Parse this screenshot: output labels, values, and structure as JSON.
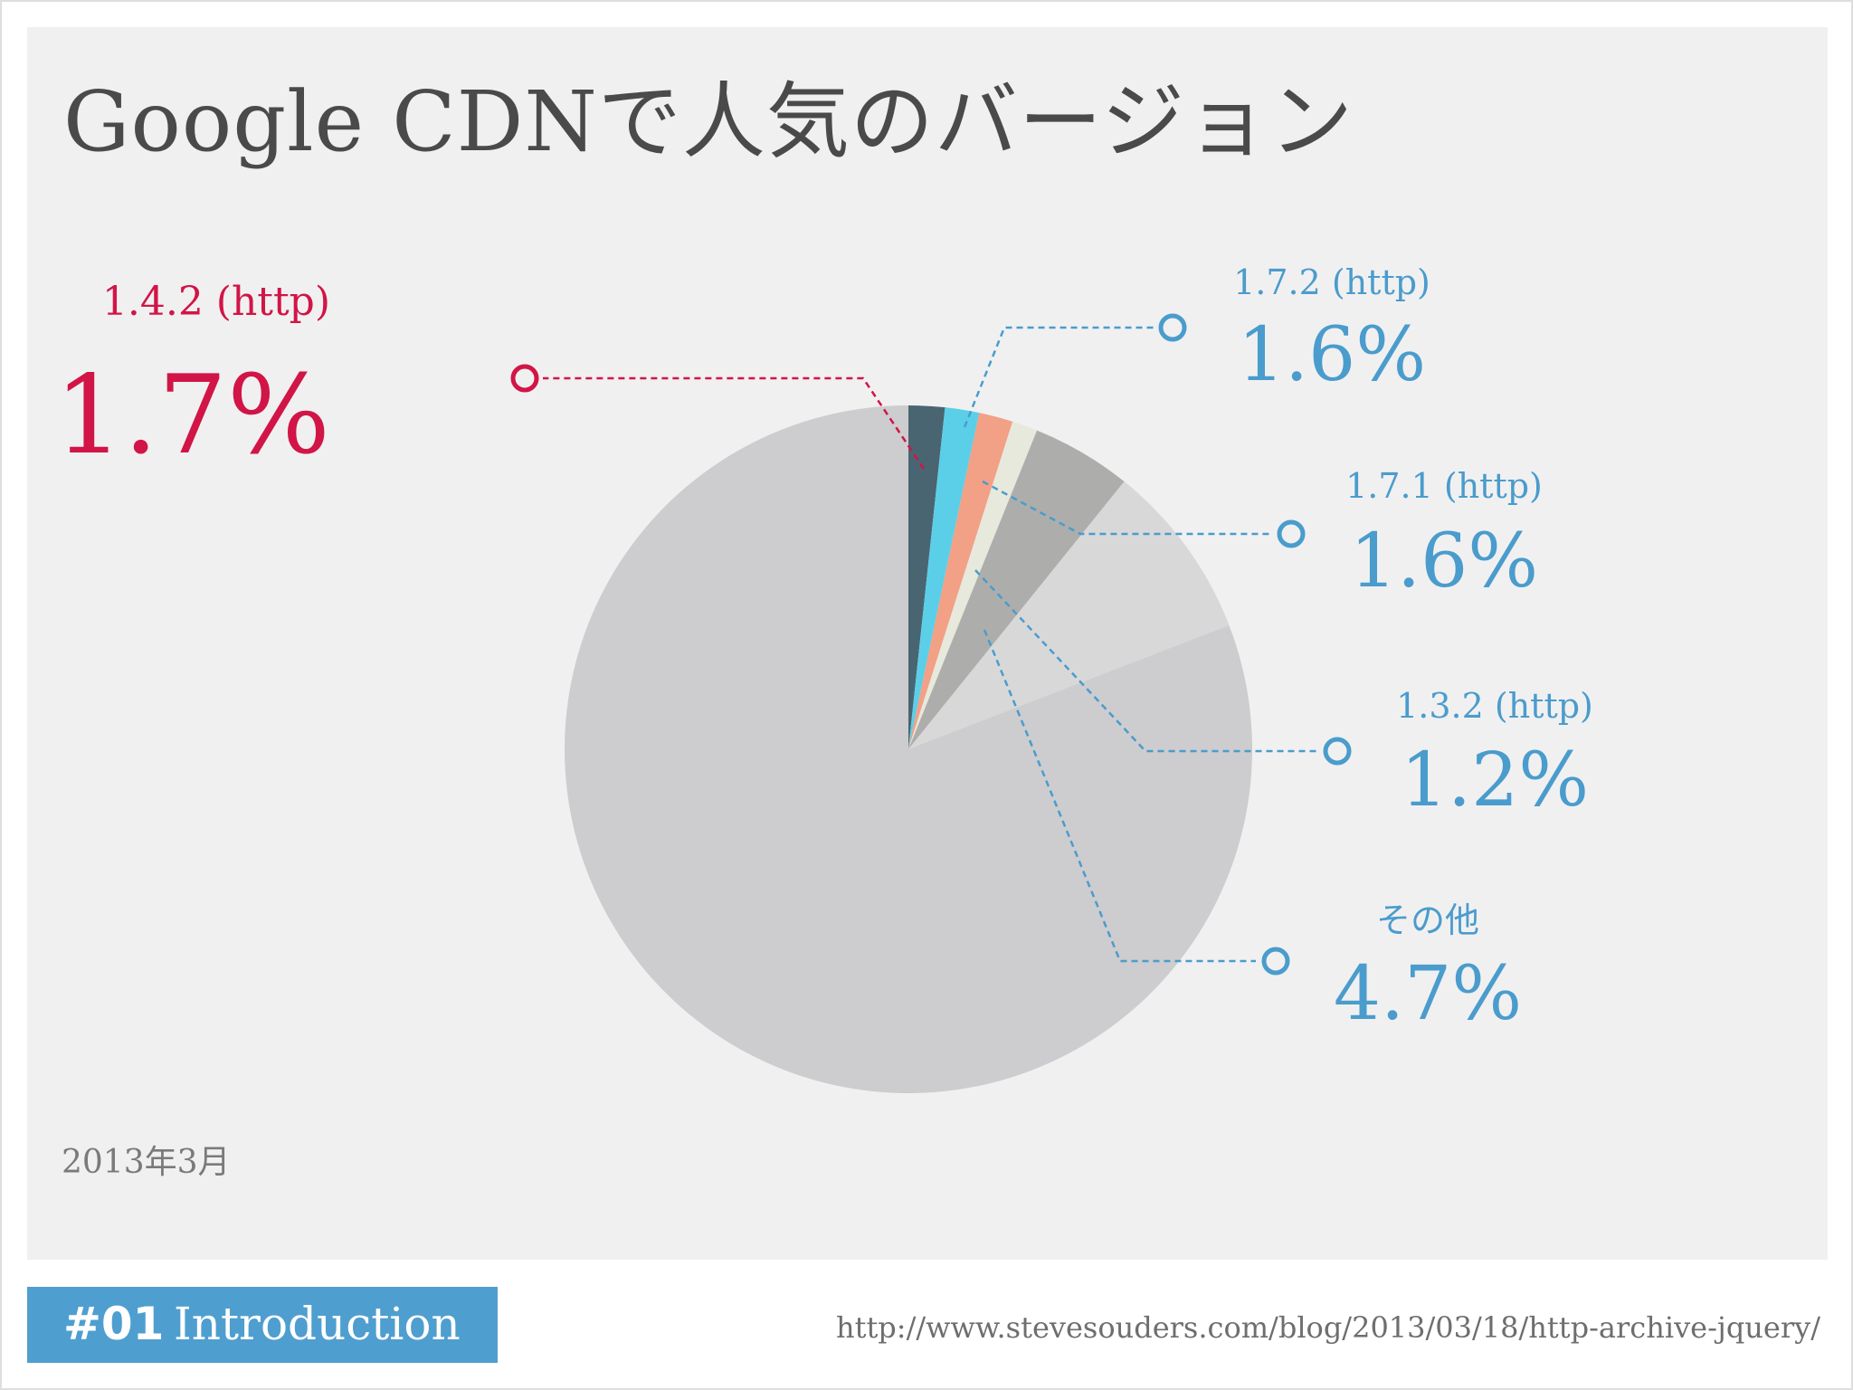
{
  "slide": {
    "title": "Google CDNで人気のバージョン",
    "date": "2013年3月",
    "footer_number": "#01",
    "footer_section": "Introduction",
    "source_url": "http://www.stevesouders.com/blog/2013/03/18/http-archive-jquery/"
  },
  "chart_data": {
    "type": "pie",
    "start": "top",
    "direction": "clockwise",
    "slices": [
      {
        "label": "1.4.2 (http)",
        "value_text": "1.7%",
        "value": 1.7,
        "color": "#4a6572",
        "label_color": "#d11546"
      },
      {
        "label": "1.7.2 (http)",
        "value_text": "1.6%",
        "value": 1.6,
        "color": "#5bcfe8",
        "label_color": "#4a9ccc"
      },
      {
        "label": "1.7.1 (http)",
        "value_text": "1.6%",
        "value": 1.6,
        "color": "#f2a086",
        "label_color": "#4a9ccc"
      },
      {
        "label": "1.3.2 (http)",
        "value_text": "1.2%",
        "value": 1.2,
        "color": "#e6e9dc",
        "label_color": "#4a9ccc"
      },
      {
        "label": "その他",
        "value_text": "4.7%",
        "value": 4.7,
        "color": "#adaeab",
        "label_color": "#4a9ccc"
      },
      {
        "label": "",
        "value_text": "",
        "value": 89.2,
        "color": "#cdcccf"
      }
    ],
    "shaded_sector_color": "#d9d8d9"
  }
}
